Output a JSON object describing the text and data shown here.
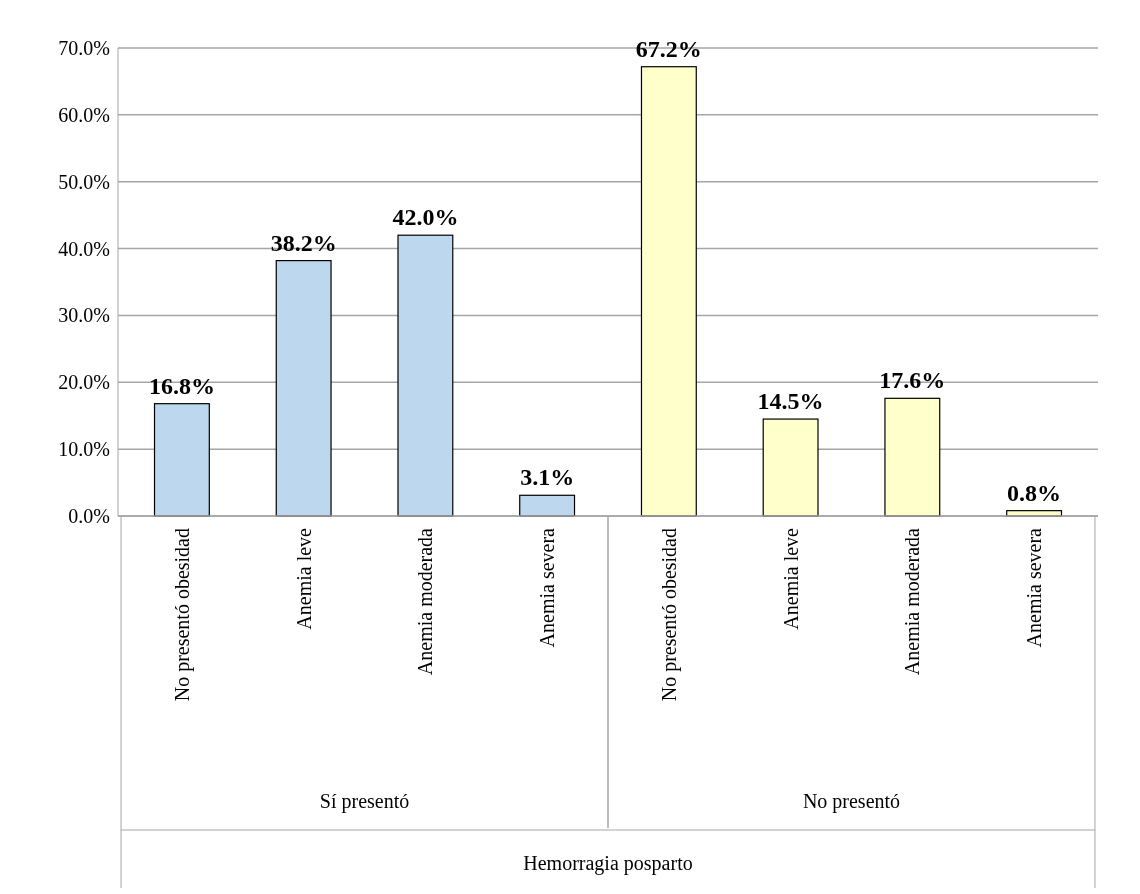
{
  "chart_data": {
    "type": "bar",
    "categories": [
      "No presentó obesidad",
      "Anemia leve",
      "Anemia moderada",
      "Anemia severa",
      "No presentó obesidad",
      "Anemia leve",
      "Anemia moderada",
      "Anemia severa"
    ],
    "values": [
      16.8,
      38.2,
      42.0,
      3.1,
      67.2,
      14.5,
      17.6,
      0.8
    ],
    "colors": [
      "#bdd7ee",
      "#bdd7ee",
      "#bdd7ee",
      "#bdd7ee",
      "#ffffcc",
      "#ffffcc",
      "#ffffcc",
      "#ffffcc"
    ],
    "value_labels": [
      "16.8%",
      "38.2%",
      "42.0%",
      "3.1%",
      "67.2%",
      "14.5%",
      "17.6%",
      "0.8%"
    ],
    "annotations": [
      "Sí presentó",
      "No presentó",
      "Hemorragia posparto"
    ],
    "ylim": [
      0,
      70
    ],
    "yticks": [
      {
        "value": 0,
        "label": "0.0%"
      },
      {
        "value": 10,
        "label": "10.0%"
      },
      {
        "value": 20,
        "label": "20.0%"
      },
      {
        "value": 30,
        "label": "30.0%"
      },
      {
        "value": 40,
        "label": "40.0%"
      },
      {
        "value": 50,
        "label": "50.0%"
      },
      {
        "value": 60,
        "label": "60.0%"
      },
      {
        "value": 70,
        "label": "70.0%"
      }
    ],
    "grid": "y"
  }
}
